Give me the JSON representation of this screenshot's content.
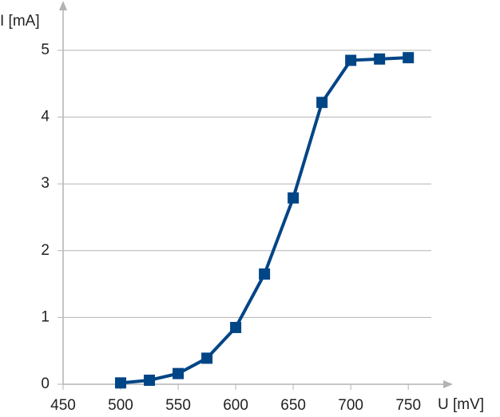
{
  "chart_data": {
    "type": "line",
    "x_label": "U [mV]",
    "y_label": "I [mA]",
    "series": [
      {
        "name": "I",
        "color": "#004586",
        "x": [
          500,
          525,
          550,
          575,
          600,
          625,
          650,
          675,
          700,
          725,
          750
        ],
        "values": [
          0.02,
          0.06,
          0.16,
          0.39,
          0.85,
          1.65,
          2.79,
          4.22,
          4.85,
          4.87,
          4.89
        ]
      }
    ],
    "xlim": [
      450,
      770
    ],
    "xticks": [
      450,
      500,
      550,
      600,
      650,
      700,
      750
    ],
    "ylim": [
      0,
      5
    ],
    "yticks": [
      0,
      1,
      2,
      3,
      4,
      5
    ],
    "grid": true
  }
}
